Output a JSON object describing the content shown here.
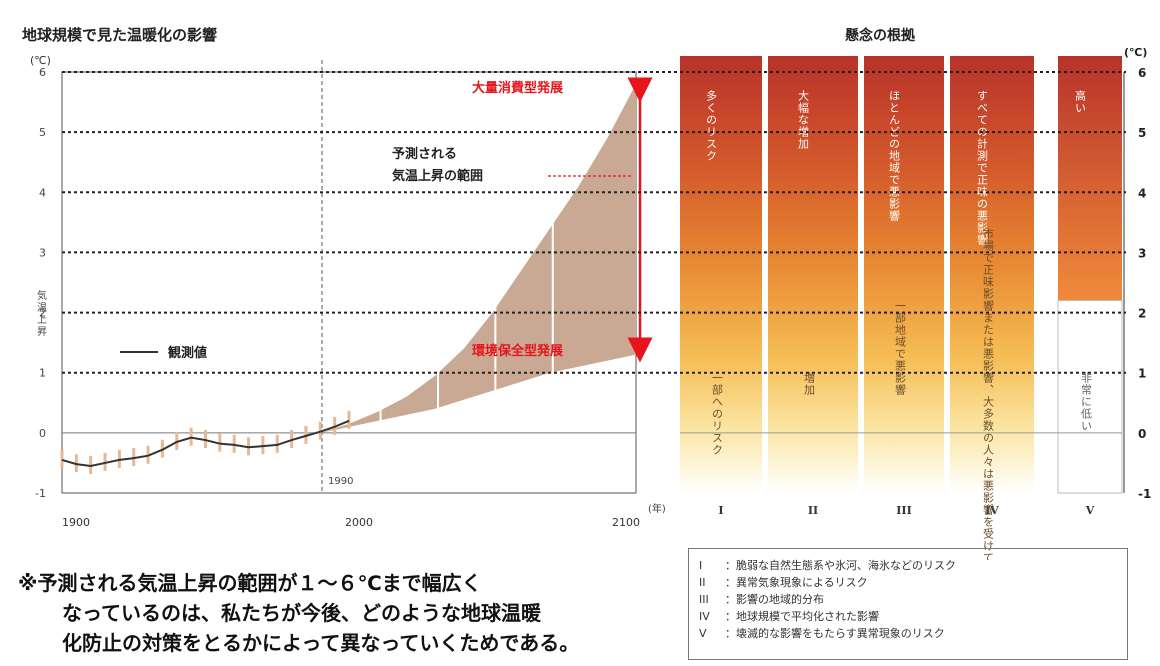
{
  "chart_data": [
    {
      "type": "area",
      "title": "地球規模で見た温暖化の影響",
      "ylabel": "気温上昇",
      "yunit": "(℃)",
      "xlim": [
        1900,
        2100
      ],
      "ylim": [
        -1,
        6
      ],
      "x_ticks": [
        "1900",
        "2000",
        "2100"
      ],
      "y_ticks": [
        "-1",
        "0",
        "1",
        "2",
        "3",
        "4",
        "5",
        "6"
      ],
      "grid": true,
      "observed_series_name": "観測値",
      "observed": {
        "x": [
          1900,
          1905,
          1910,
          1915,
          1920,
          1925,
          1930,
          1935,
          1940,
          1945,
          1950,
          1955,
          1960,
          1965,
          1970,
          1975,
          1980,
          1985,
          1990,
          1995,
          2000
        ],
        "y": [
          -0.45,
          -0.52,
          -0.55,
          -0.5,
          -0.45,
          -0.42,
          -0.38,
          -0.28,
          -0.15,
          -0.08,
          -0.12,
          -0.18,
          -0.2,
          -0.24,
          -0.22,
          -0.2,
          -0.12,
          -0.05,
          0.02,
          0.1,
          0.2
        ]
      },
      "projection_range_label": [
        "予測される",
        "気温上昇の範囲"
      ],
      "projection": {
        "x": [
          1990,
          2000,
          2010,
          2020,
          2030,
          2040,
          2050,
          2060,
          2070,
          2080,
          2090,
          2100
        ],
        "low": [
          0.0,
          0.1,
          0.2,
          0.3,
          0.4,
          0.55,
          0.7,
          0.85,
          1.0,
          1.1,
          1.2,
          1.3
        ],
        "high": [
          0.0,
          0.15,
          0.35,
          0.6,
          0.95,
          1.4,
          2.0,
          2.7,
          3.4,
          4.1,
          4.9,
          5.8
        ]
      },
      "annotations": {
        "high_scenario": "大量消費型発展",
        "low_scenario": "環境保全型発展",
        "marker_year": "1990"
      }
    },
    {
      "type": "heatmap",
      "title": "懸念の根拠",
      "yunit": "(℃)",
      "ylim": [
        -1,
        6
      ],
      "y_ticks": [
        "-1",
        "0",
        "1",
        "2",
        "3",
        "4",
        "5",
        "6"
      ],
      "x_unit": "(年)",
      "columns": [
        {
          "id": "I",
          "upper_text": "多くのリスク",
          "lower_text": "一部へのリスク",
          "threshold": 0
        },
        {
          "id": "II",
          "upper_text": "大幅な増加",
          "lower_text": "増加",
          "threshold": 0
        },
        {
          "id": "III",
          "upper_text": "ほとんどの地域で悪影響",
          "lower_text": "一部地域で悪影響",
          "threshold": 0
        },
        {
          "id": "IV",
          "upper_text": "すべての計測で正味の悪影響",
          "lower_text": "市場で正味影響または悪影響、大多数の人々は悪影響を受けている",
          "threshold": 0
        },
        {
          "id": "V",
          "upper_text": "高い",
          "lower_text": "非常に低い",
          "threshold": 2.2
        }
      ]
    }
  ],
  "footnote": [
    "※予測される気温上昇の範囲が１～６℃まで幅広く",
    "なっているのは、私たちが今後、どのような地球温暖",
    "化防止の対策をとるかによって異なっていくためである。"
  ],
  "legend_items": [
    {
      "num": "I",
      "text": "：脆弱な自然生態系や氷河、海氷などのリスク"
    },
    {
      "num": "II",
      "text": "：異常気象現象によるリスク"
    },
    {
      "num": "III",
      "text": "：影響の地域的分布"
    },
    {
      "num": "IV",
      "text": "：地球規模で平均化された影響"
    },
    {
      "num": "V",
      "text": "：壊滅的な影響をもたらす異常現象のリスク"
    }
  ],
  "colors": {
    "projection_fill": "#c9a993",
    "observed_line": "#333333",
    "observed_error": "#e8b894",
    "annotation_red": "#e8141c",
    "heat_top": "#b8322a",
    "heat_mid": "#e07a2a",
    "heat_low": "#f7c25a",
    "heat_pale": "#fdf6e3"
  }
}
